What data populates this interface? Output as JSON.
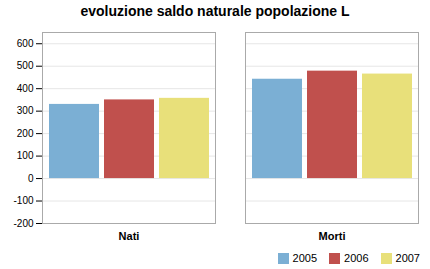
{
  "chart_data": {
    "type": "bar",
    "title": "evoluzione saldo naturale popolazione L",
    "categories": [
      "Nati",
      "Morti"
    ],
    "series": [
      {
        "name": "2005",
        "color": "#7bafd4",
        "values": [
          330,
          442
        ]
      },
      {
        "name": "2006",
        "color": "#c0504d",
        "values": [
          350,
          478
        ]
      },
      {
        "name": "2007",
        "color": "#e8e07a",
        "values": [
          357,
          465
        ]
      }
    ],
    "ylim": [
      -200,
      650
    ],
    "yticks": [
      -200,
      -100,
      0,
      100,
      200,
      300,
      400,
      500,
      600
    ],
    "grid": true,
    "legend": "lower right"
  }
}
